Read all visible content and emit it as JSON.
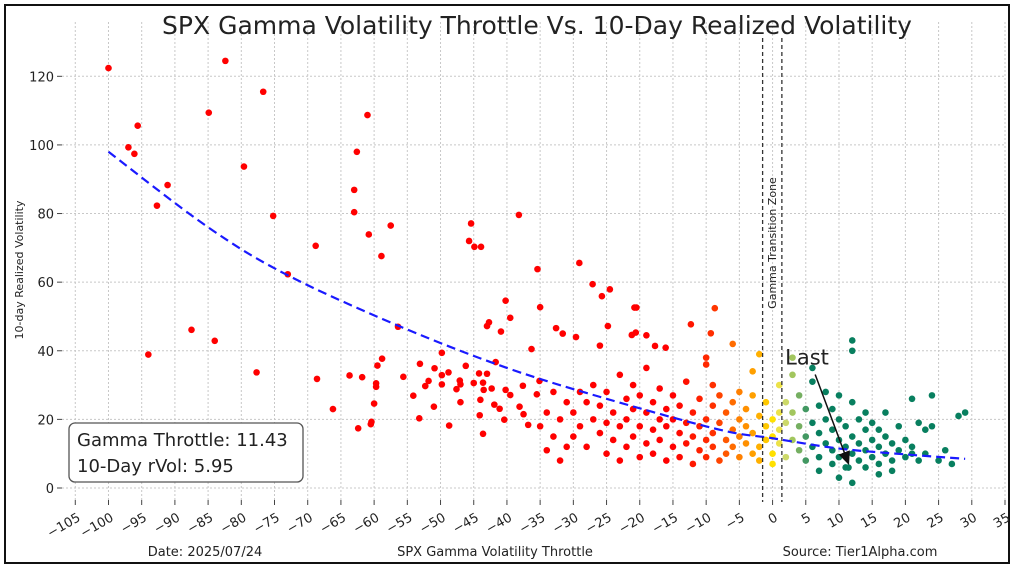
{
  "chart_data": {
    "type": "scatter",
    "title": "SPX Gamma Volatility Throttle Vs. 10-Day Realized Volatility",
    "xlabel": "SPX Gamma Volatility Throttle",
    "ylabel": "10-day Realized Volatility",
    "xlim": [
      -107,
      35
    ],
    "ylim": [
      -3.5,
      130
    ],
    "xticks": [
      -105,
      -100,
      -95,
      -90,
      -85,
      -80,
      -75,
      -70,
      -65,
      -60,
      -55,
      -50,
      -45,
      -40,
      -35,
      -30,
      -25,
      -20,
      -15,
      -10,
      -5,
      0,
      5,
      10,
      15,
      20,
      25,
      30,
      35
    ],
    "yticks": [
      0,
      20,
      40,
      60,
      80,
      100,
      120
    ],
    "grid": true,
    "colors": {
      "fit_line": "#1a1aff",
      "colormap": [
        {
          "x": -15,
          "color": "#ff0000"
        },
        {
          "x": -9,
          "color": "#ff3000"
        },
        {
          "x": -5,
          "color": "#ff8000"
        },
        {
          "x": -2,
          "color": "#ffb000"
        },
        {
          "x": 0,
          "color": "#ffe000"
        },
        {
          "x": 1.5,
          "color": "#e2e36e"
        },
        {
          "x": 3,
          "color": "#a2c65e"
        },
        {
          "x": 4.5,
          "color": "#5fa463"
        },
        {
          "x": 6,
          "color": "#087f5f"
        }
      ]
    },
    "fit_curve": [
      [
        -100,
        98
      ],
      [
        -85,
        76
      ],
      [
        -73,
        62
      ],
      [
        -56,
        47
      ],
      [
        -40,
        35
      ],
      [
        -25,
        26
      ],
      [
        -8,
        17
      ],
      [
        0,
        14.5
      ],
      [
        10,
        11.5
      ],
      [
        20,
        9.8
      ],
      [
        29,
        8.5
      ]
    ],
    "transition_zone": {
      "x0": -1.5,
      "x1": 1.4,
      "label": "Gamma Transition Zone"
    },
    "last_point": {
      "label": "Last",
      "x": 11.43,
      "y": 5.95,
      "label_x": 2.2,
      "label_y": 36
    },
    "points": [
      [
        -100,
        122.4
      ],
      [
        -82.4,
        124.5
      ],
      [
        -76.7,
        115.5
      ],
      [
        -84.9,
        109.4
      ],
      [
        -95.6,
        105.6
      ],
      [
        -97,
        99.3
      ],
      [
        -96.1,
        97.4
      ],
      [
        -79.6,
        93.7
      ],
      [
        -91.1,
        88.3
      ],
      [
        -92.7,
        82.3
      ],
      [
        -75.2,
        79.3
      ],
      [
        -68.8,
        70.6
      ],
      [
        -73,
        62.3
      ],
      [
        -87.5,
        46.1
      ],
      [
        -84,
        42.9
      ],
      [
        -94,
        38.9
      ],
      [
        -77.7,
        33.7
      ],
      [
        -68.6,
        31.8
      ],
      [
        -66.2,
        23
      ],
      [
        -61,
        108.7
      ],
      [
        -62.6,
        98
      ],
      [
        -63,
        86.9
      ],
      [
        -63,
        80.4
      ],
      [
        -60.8,
        73.9
      ],
      [
        -57.5,
        76.5
      ],
      [
        -58.9,
        67.6
      ],
      [
        -56.4,
        47
      ],
      [
        -63.7,
        32.8
      ],
      [
        -61.8,
        32.3
      ],
      [
        -58.8,
        37.7
      ],
      [
        -59.5,
        35.7
      ],
      [
        -59.7,
        30.5
      ],
      [
        -59.7,
        29.5
      ],
      [
        -60,
        24.6
      ],
      [
        -60.4,
        19.3
      ],
      [
        -60.5,
        18.6
      ],
      [
        -62.4,
        17.4
      ],
      [
        -45.4,
        77.1
      ],
      [
        -45.7,
        72
      ],
      [
        -44.9,
        70.3
      ],
      [
        -43.9,
        70.3
      ],
      [
        -38.2,
        79.6
      ],
      [
        -35.4,
        63.8
      ],
      [
        -29.1,
        65.6
      ],
      [
        -27.1,
        59.4
      ],
      [
        -25.7,
        55.9
      ],
      [
        -24.5,
        57.9
      ],
      [
        -40.2,
        54.6
      ],
      [
        -39.5,
        49.6
      ],
      [
        -35,
        52.7
      ],
      [
        -42.7,
        48.3
      ],
      [
        -43,
        47.2
      ],
      [
        -40.9,
        45.6
      ],
      [
        -20.8,
        52.6
      ],
      [
        -20.5,
        52.6
      ],
      [
        -24.8,
        47.2
      ],
      [
        -32.6,
        46.6
      ],
      [
        -31.6,
        45
      ],
      [
        -29.6,
        44
      ],
      [
        -26,
        41.5
      ],
      [
        -21.2,
        44.6
      ],
      [
        -20.6,
        45.3
      ],
      [
        -19,
        44.5
      ],
      [
        -17.7,
        41.4
      ],
      [
        -16.1,
        40.9
      ],
      [
        -12.3,
        47.7
      ],
      [
        -9.3,
        45.1
      ],
      [
        -8.7,
        52.4
      ],
      [
        -36.3,
        40.5
      ],
      [
        -49.8,
        39.4
      ],
      [
        -53.1,
        36.2
      ],
      [
        -46.2,
        35.6
      ],
      [
        -41.7,
        36.7
      ],
      [
        -50.9,
        34.9
      ],
      [
        -55.6,
        32.4
      ],
      [
        -51.8,
        31.2
      ],
      [
        -49.8,
        32.9
      ],
      [
        -48.8,
        33.7
      ],
      [
        -47.1,
        31.3
      ],
      [
        -47,
        30.2
      ],
      [
        -44.2,
        33.4
      ],
      [
        -43,
        33.3
      ],
      [
        -52.3,
        29.7
      ],
      [
        -49.8,
        30.2
      ],
      [
        -47.6,
        28.8
      ],
      [
        -45,
        30.6
      ],
      [
        -43.6,
        30.7
      ],
      [
        -43.5,
        28.6
      ],
      [
        -42.3,
        29
      ],
      [
        -40.2,
        28.6
      ],
      [
        -39.5,
        27.1
      ],
      [
        -37.6,
        29.8
      ],
      [
        -35.5,
        27.3
      ],
      [
        -35.1,
        31.2
      ],
      [
        -54.1,
        26.9
      ],
      [
        -51,
        23.7
      ],
      [
        -47,
        25
      ],
      [
        -44,
        25.7
      ],
      [
        -41.9,
        24.3
      ],
      [
        -41.1,
        23.1
      ],
      [
        -38.1,
        23.7
      ],
      [
        -53.2,
        20.3
      ],
      [
        -48.7,
        18.2
      ],
      [
        -44.1,
        21.2
      ],
      [
        -43.6,
        15.8
      ],
      [
        -40.4,
        19.9
      ],
      [
        -37.5,
        21.5
      ],
      [
        -36.8,
        18.4
      ],
      [
        -34,
        22
      ],
      [
        -33,
        15
      ],
      [
        -33,
        28
      ],
      [
        -32,
        20
      ],
      [
        -31,
        12
      ],
      [
        -31,
        25
      ],
      [
        -32,
        8
      ],
      [
        -35,
        18
      ],
      [
        -34,
        11
      ],
      [
        -30,
        22
      ],
      [
        -30,
        15
      ],
      [
        -29,
        28
      ],
      [
        -29,
        18
      ],
      [
        -28,
        25
      ],
      [
        -28,
        12
      ],
      [
        -27,
        20
      ],
      [
        -27,
        30
      ],
      [
        -26,
        16
      ],
      [
        -26,
        24
      ],
      [
        -25,
        10
      ],
      [
        -25,
        19
      ],
      [
        -25,
        28
      ],
      [
        -24,
        14
      ],
      [
        -24,
        22
      ],
      [
        -23,
        33
      ],
      [
        -23,
        18
      ],
      [
        -23,
        8
      ],
      [
        -22,
        26
      ],
      [
        -22,
        12
      ],
      [
        -22,
        20
      ],
      [
        -21,
        15
      ],
      [
        -21,
        30
      ],
      [
        -21,
        23
      ],
      [
        -20,
        9
      ],
      [
        -20,
        18
      ],
      [
        -20,
        27
      ],
      [
        -19,
        13
      ],
      [
        -19,
        22
      ],
      [
        -19,
        35
      ],
      [
        -18,
        17
      ],
      [
        -18,
        25
      ],
      [
        -18,
        10
      ],
      [
        -17,
        20
      ],
      [
        -17,
        14
      ],
      [
        -17,
        29
      ],
      [
        -16,
        8
      ],
      [
        -16,
        23
      ],
      [
        -16,
        18
      ],
      [
        -15,
        12
      ],
      [
        -15,
        27
      ],
      [
        -15,
        20
      ],
      [
        -14,
        16
      ],
      [
        -14,
        9
      ],
      [
        -14,
        24
      ],
      [
        -13,
        31
      ],
      [
        -13,
        13
      ],
      [
        -13,
        19
      ],
      [
        -12,
        22
      ],
      [
        -12,
        7
      ],
      [
        -12,
        15
      ],
      [
        -11,
        26
      ],
      [
        -11,
        11
      ],
      [
        -11,
        18
      ],
      [
        -10,
        20
      ],
      [
        -10,
        14
      ],
      [
        -10,
        9
      ],
      [
        -10,
        38
      ],
      [
        -10,
        36
      ],
      [
        -9,
        24
      ],
      [
        -9,
        16
      ],
      [
        -9,
        12
      ],
      [
        -9,
        30
      ],
      [
        -8,
        19
      ],
      [
        -8,
        8
      ],
      [
        -8,
        27
      ],
      [
        -7,
        14
      ],
      [
        -7,
        22
      ],
      [
        -7,
        10
      ],
      [
        -6,
        17
      ],
      [
        -6,
        25
      ],
      [
        -6,
        12
      ],
      [
        -6,
        42
      ],
      [
        -5,
        20
      ],
      [
        -5,
        9
      ],
      [
        -5,
        15
      ],
      [
        -5,
        28
      ],
      [
        -4,
        13
      ],
      [
        -4,
        23
      ],
      [
        -4,
        18
      ],
      [
        -3,
        10
      ],
      [
        -3,
        16
      ],
      [
        -3,
        27
      ],
      [
        -3,
        34
      ],
      [
        -2,
        21
      ],
      [
        -2,
        12
      ],
      [
        -2,
        8
      ],
      [
        -2,
        39
      ],
      [
        -1,
        18
      ],
      [
        -1,
        14
      ],
      [
        -1,
        25
      ],
      [
        0,
        10
      ],
      [
        0,
        20
      ],
      [
        0,
        15
      ],
      [
        0,
        7
      ],
      [
        1,
        22
      ],
      [
        1,
        13
      ],
      [
        1,
        17
      ],
      [
        1,
        30
      ],
      [
        2,
        9
      ],
      [
        2,
        19
      ],
      [
        2,
        25
      ],
      [
        3,
        14
      ],
      [
        3,
        22
      ],
      [
        3,
        33
      ],
      [
        3,
        38
      ],
      [
        4,
        11
      ],
      [
        4,
        18
      ],
      [
        4,
        27
      ],
      [
        5,
        8
      ],
      [
        5,
        15
      ],
      [
        5,
        23
      ],
      [
        6,
        12
      ],
      [
        6,
        19
      ],
      [
        6,
        31
      ],
      [
        6,
        35
      ],
      [
        7,
        9
      ],
      [
        7,
        16
      ],
      [
        7,
        24
      ],
      [
        7,
        5
      ],
      [
        8,
        13
      ],
      [
        8,
        20
      ],
      [
        8,
        28
      ],
      [
        9,
        7
      ],
      [
        9,
        11
      ],
      [
        9,
        17
      ],
      [
        9,
        23
      ],
      [
        10,
        14
      ],
      [
        10,
        9
      ],
      [
        10,
        20
      ],
      [
        10,
        27
      ],
      [
        11,
        6
      ],
      [
        11,
        12
      ],
      [
        11,
        18
      ],
      [
        12,
        10
      ],
      [
        12,
        15
      ],
      [
        12,
        25
      ],
      [
        12,
        43
      ],
      [
        12,
        40
      ],
      [
        13,
        8
      ],
      [
        13,
        13
      ],
      [
        13,
        20
      ],
      [
        14,
        11
      ],
      [
        14,
        17
      ],
      [
        14,
        6
      ],
      [
        14,
        22
      ],
      [
        15,
        9
      ],
      [
        15,
        14
      ],
      [
        15,
        19
      ],
      [
        16,
        12
      ],
      [
        16,
        7
      ],
      [
        16,
        17
      ],
      [
        17,
        10
      ],
      [
        17,
        15
      ],
      [
        17,
        22
      ],
      [
        18,
        8
      ],
      [
        18,
        13
      ],
      [
        19,
        11
      ],
      [
        19,
        18
      ],
      [
        20,
        9
      ],
      [
        20,
        14
      ],
      [
        21,
        12
      ],
      [
        21,
        10
      ],
      [
        21,
        26
      ],
      [
        22,
        8
      ],
      [
        22,
        19
      ],
      [
        23,
        17
      ],
      [
        23,
        10
      ],
      [
        24,
        27
      ],
      [
        24,
        18
      ],
      [
        25,
        8
      ],
      [
        26,
        11
      ],
      [
        27,
        7
      ],
      [
        28,
        21
      ],
      [
        29,
        22
      ],
      [
        12,
        1.5
      ],
      [
        10,
        3
      ],
      [
        18,
        5
      ],
      [
        16,
        4
      ],
      [
        11.43,
        5.95
      ]
    ]
  },
  "info_box": {
    "line1": "Gamma Throttle: 11.43",
    "line2": "10-Day rVol: 5.95"
  },
  "footer": {
    "date": "Date: 2025/07/24",
    "source": "Source: Tier1Alpha.com"
  }
}
